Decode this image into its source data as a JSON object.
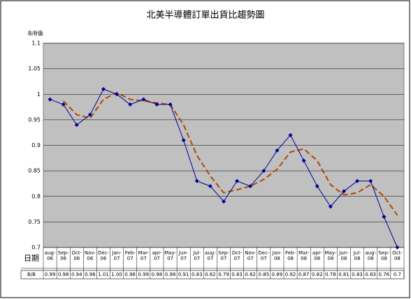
{
  "chart_data": {
    "type": "line",
    "title": "北美半導體訂單出貨比趨勢圖",
    "y_label": "B/B值",
    "date_row_label": "日期",
    "value_row_label": "B/B",
    "categories": [
      "aug-06",
      "Sep-06",
      "Oct-06",
      "Nov-06",
      "Dec-06",
      "Jan-07",
      "Feb-07",
      "Mar-07",
      "apr-07",
      "May-07",
      "Jun-07",
      "Jul-07",
      "aug-07",
      "Sep-07",
      "Oct-07",
      "Nov-07",
      "Dec-07",
      "Jan-08",
      "Feb-08",
      "Mar-08",
      "apr-08",
      "May-08",
      "Jun-08",
      "Jul-08",
      "aug-08",
      "Sep-08",
      "Oct-08"
    ],
    "series": [
      {
        "color": "#000099",
        "marker": true,
        "dashed": false,
        "values": [
          0.99,
          0.98,
          0.94,
          0.96,
          1.01,
          1.0,
          0.98,
          0.99,
          0.98,
          0.98,
          0.91,
          0.83,
          0.82,
          0.79,
          0.83,
          0.82,
          0.85,
          0.89,
          0.92,
          0.87,
          0.82,
          0.78,
          0.81,
          0.83,
          0.83,
          0.76,
          0.7
        ],
        "value_labels": [
          "0.99",
          "0.98",
          "0.94",
          "0.96",
          "1.01",
          "1.00",
          "0.98",
          "0.99",
          "0.98",
          "0.98",
          "0.91",
          "0.83",
          "0.82",
          "0.79",
          "0.83",
          "0.82",
          "0.85",
          "0.89",
          "0.92",
          "0.87",
          "0.82",
          "0.78",
          "0.81",
          "0.83",
          "0.83",
          "0.76",
          "0.7"
        ]
      },
      {
        "color": "#b34700",
        "marker": false,
        "dashed": true,
        "values": [
          null,
          0.987,
          0.96,
          0.953,
          0.99,
          1.003,
          0.99,
          0.987,
          0.983,
          0.98,
          0.94,
          0.88,
          0.84,
          0.807,
          0.813,
          0.82,
          0.833,
          0.853,
          0.887,
          0.893,
          0.87,
          0.823,
          0.803,
          0.807,
          0.823,
          0.8,
          0.763
        ]
      }
    ],
    "ylim": [
      0.7,
      1.1
    ],
    "yticks": [
      0.7,
      0.75,
      0.8,
      0.85,
      0.9,
      0.95,
      1,
      1.05,
      1.1
    ],
    "grid": true
  }
}
